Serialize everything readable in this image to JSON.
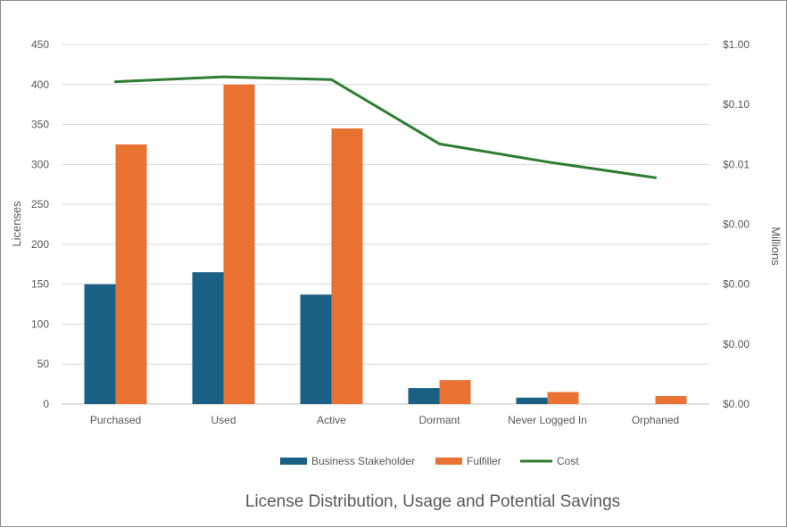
{
  "chart_data": {
    "type": "bar",
    "title": "License Distribution, Usage and Potential Savings",
    "categories": [
      "Purchased",
      "Used",
      "Active",
      "Dormant",
      "Never Logged In",
      "Orphaned"
    ],
    "ylabel": "Licenses",
    "y2label": "Millions",
    "ylim": [
      0,
      450
    ],
    "yticks": [
      "0",
      "50",
      "100",
      "150",
      "200",
      "250",
      "300",
      "350",
      "400",
      "450"
    ],
    "y2ticks": [
      "$0.00",
      "$0.00",
      "$0.00",
      "$0.00",
      "$0.01",
      "$0.10",
      "$1.00"
    ],
    "y2_log_range": [
      -6,
      0
    ],
    "grid": true,
    "legend_position": "bottom",
    "series": [
      {
        "name": "Business Stakeholder",
        "kind": "bar",
        "axis": "left",
        "color": "#1a5f84",
        "values": [
          150,
          165,
          137,
          20,
          8,
          0
        ]
      },
      {
        "name": "Fulfiller",
        "kind": "bar",
        "axis": "left",
        "color": "#e97132",
        "values": [
          325,
          400,
          345,
          30,
          15,
          10
        ]
      },
      {
        "name": "Cost",
        "kind": "line",
        "axis": "right",
        "color": "#2e7d32",
        "unit": "millions",
        "values": [
          0.24,
          0.29,
          0.26,
          0.022,
          0.011,
          0.006
        ]
      }
    ]
  }
}
